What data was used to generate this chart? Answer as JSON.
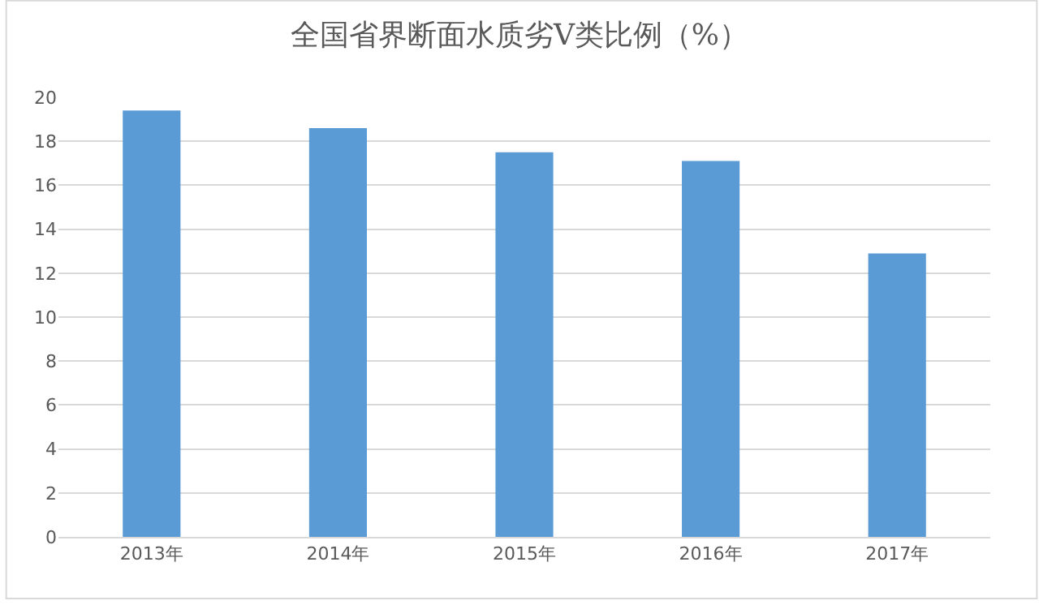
{
  "chart_data": {
    "type": "bar",
    "title": "全国省界断面水质劣V类比例（%）",
    "categories": [
      "2013年",
      "2014年",
      "2015年",
      "2016年",
      "2017年"
    ],
    "values": [
      19.4,
      18.6,
      17.5,
      17.1,
      12.9
    ],
    "color": "#5b9bd5",
    "ylim": [
      0,
      20
    ],
    "yticks": [
      0,
      2,
      4,
      6,
      8,
      10,
      12,
      14,
      16,
      18,
      20
    ],
    "grid": "y",
    "legend": false
  }
}
